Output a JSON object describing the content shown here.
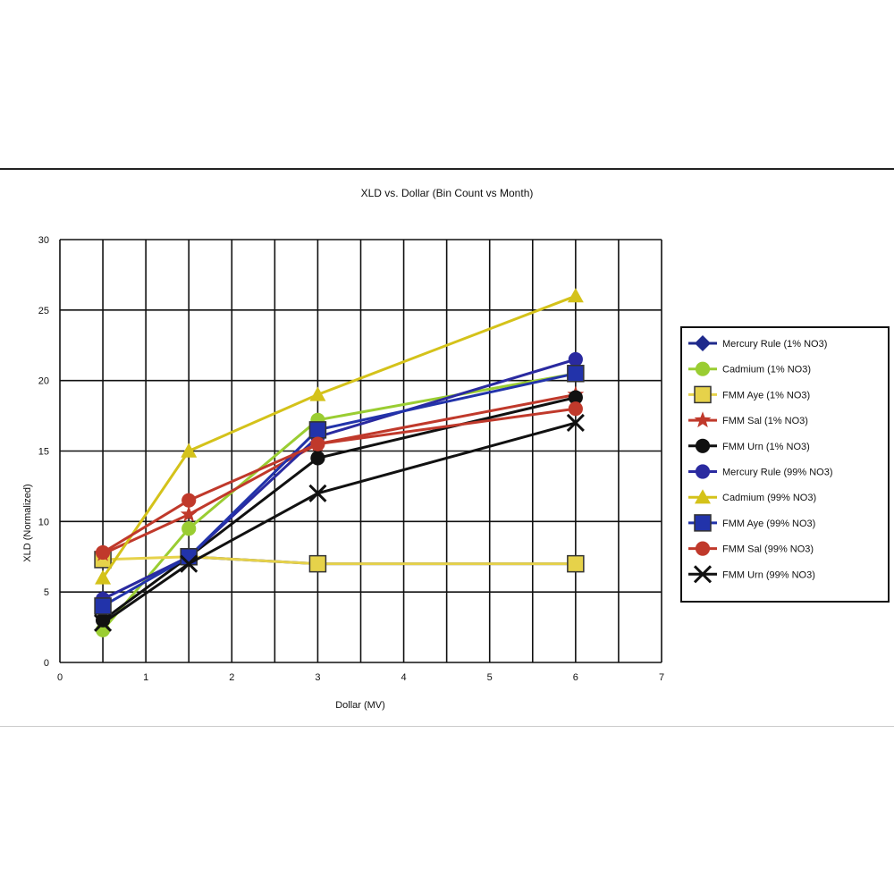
{
  "chart_data": {
    "type": "line",
    "title": "XLD vs. Dollar (Bin Count vs Month)",
    "xlabel": "Dollar (MV)",
    "ylabel": "XLD (Normalized)",
    "xlim": [
      0,
      7
    ],
    "ylim": [
      0,
      30
    ],
    "xticks": [
      "0",
      "1",
      "2",
      "3",
      "4",
      "5",
      "6",
      "7"
    ],
    "yticks": [
      "0",
      "5",
      "10",
      "15",
      "20",
      "25",
      "30"
    ],
    "grid": true,
    "legend_position": "right",
    "series": [
      {
        "name": "Mercury Rule (1% NO3)",
        "color": "#1f2a8c",
        "marker": "diamond",
        "x": [
          0.5,
          1.5,
          3,
          6
        ],
        "y": [
          4.5,
          7.5,
          7.0,
          7.0
        ]
      },
      {
        "name": "Cadmium (1% NO3)",
        "color": "#9acd32",
        "marker": "circle",
        "x": [
          0.5,
          1.5,
          3,
          6
        ],
        "y": [
          2.3,
          9.5,
          17.2,
          20.5
        ]
      },
      {
        "name": "FMM Aye (1% NO3)",
        "color": "#e6d24a",
        "marker": "square",
        "x": [
          0.5,
          1.5,
          3,
          6
        ],
        "y": [
          7.3,
          7.5,
          7.0,
          7.0
        ]
      },
      {
        "name": "FMM Sal (1% NO3)",
        "color": "#c0392b",
        "marker": "star",
        "x": [
          0.5,
          1.5,
          3,
          6
        ],
        "y": [
          7.7,
          10.5,
          15.5,
          19.0
        ]
      },
      {
        "name": "FMM Urn (1% NO3)",
        "color": "#111111",
        "marker": "circle",
        "x": [
          0.5,
          1.5,
          3,
          6
        ],
        "y": [
          3.0,
          7.5,
          14.5,
          18.8
        ]
      },
      {
        "name": "Mercury Rule (99% NO3)",
        "color": "#2a2aa0",
        "marker": "circle",
        "x": [
          0.5,
          1.5,
          3,
          6
        ],
        "y": [
          4.5,
          7.5,
          16.0,
          21.5
        ]
      },
      {
        "name": "Cadmium (99% NO3)",
        "color": "#d4c21a",
        "marker": "triangle",
        "x": [
          0.5,
          1.5,
          3,
          6
        ],
        "y": [
          6.0,
          15.0,
          19.0,
          26.0
        ]
      },
      {
        "name": "FMM Aye (99% NO3)",
        "color": "#2233aa",
        "marker": "square",
        "x": [
          0.5,
          1.5,
          3,
          6
        ],
        "y": [
          4.0,
          7.5,
          16.5,
          20.5
        ]
      },
      {
        "name": "FMM Sal (99% NO3)",
        "color": "#c0392b",
        "marker": "circle",
        "x": [
          0.5,
          1.5,
          3,
          6
        ],
        "y": [
          7.8,
          11.5,
          15.5,
          18.0
        ]
      },
      {
        "name": "FMM Urn (99% NO3)",
        "color": "#111111",
        "marker": "x",
        "x": [
          0.5,
          1.5,
          3,
          6
        ],
        "y": [
          2.8,
          7.0,
          12.0,
          17.0
        ]
      }
    ]
  }
}
